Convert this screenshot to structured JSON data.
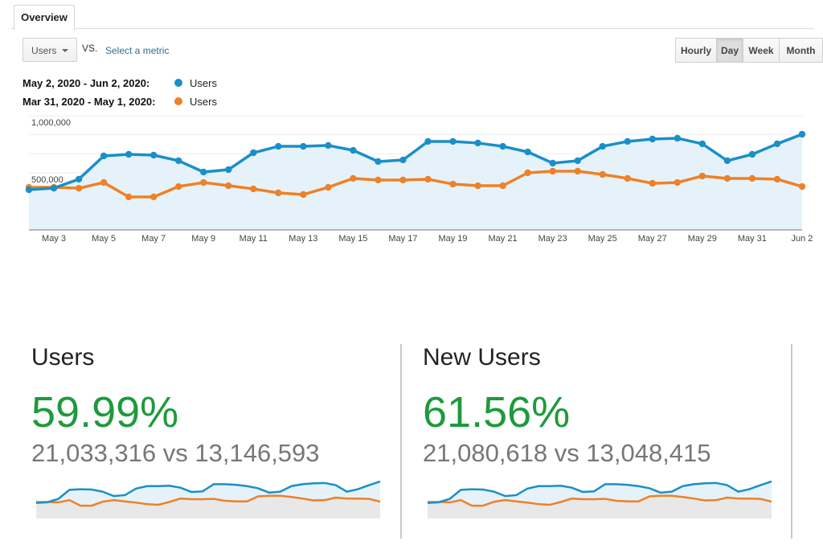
{
  "tabs": {
    "overview": "Overview"
  },
  "controls": {
    "metric_selected": "Users",
    "vs_label": "VS.",
    "select_metric_link": "Select a metric",
    "periods": [
      "Hourly",
      "Day",
      "Week",
      "Month"
    ],
    "active_period": "Day"
  },
  "legend": [
    {
      "range": "May 2, 2020 - Jun 2, 2020:",
      "label": "Users",
      "color": "#1a8fc9"
    },
    {
      "range": "Mar 31, 2020 - May 1, 2020:",
      "label": "Users",
      "color": "#ee8127"
    }
  ],
  "chart_data": {
    "type": "line",
    "ylim": [
      0,
      1000000
    ],
    "y_ticks": [
      "1,000,000",
      "500,000"
    ],
    "x_tick_labels": [
      "May 3",
      "May 5",
      "May 7",
      "May 9",
      "May 11",
      "May 13",
      "May 15",
      "May 17",
      "May 19",
      "May 21",
      "May 23",
      "May 25",
      "May 27",
      "May 29",
      "May 31",
      "Jun 2"
    ],
    "x": [
      "May 2",
      "May 3",
      "May 4",
      "May 5",
      "May 6",
      "May 7",
      "May 8",
      "May 9",
      "May 10",
      "May 11",
      "May 12",
      "May 13",
      "May 14",
      "May 15",
      "May 16",
      "May 17",
      "May 18",
      "May 19",
      "May 20",
      "May 21",
      "May 22",
      "May 23",
      "May 24",
      "May 25",
      "May 26",
      "May 27",
      "May 28",
      "May 29",
      "May 30",
      "May 31",
      "Jun 1",
      "Jun 2"
    ],
    "grid": true,
    "series": [
      {
        "name": "Users",
        "color": "#1a8fc9",
        "values": [
          352000,
          366000,
          444000,
          648000,
          662000,
          655000,
          606000,
          507000,
          528000,
          676000,
          732000,
          732000,
          740000,
          697000,
          599000,
          613000,
          775000,
          775000,
          761000,
          732000,
          683000,
          585000,
          606000,
          732000,
          775000,
          796000,
          803000,
          754000,
          606000,
          662000,
          754000,
          838000
        ]
      },
      {
        "name": "Users",
        "color": "#ee8127",
        "values": [
          373000,
          373000,
          365000,
          415000,
          289000,
          289000,
          380000,
          415000,
          387000,
          359000,
          324000,
          310000,
          373000,
          451000,
          437000,
          437000,
          444000,
          401000,
          387000,
          387000,
          500000,
          514000,
          514000,
          486000,
          451000,
          408000,
          415000,
          472000,
          451000,
          451000,
          444000,
          380000
        ]
      }
    ]
  },
  "cards": [
    {
      "title": "Users",
      "change": "59.99%",
      "comparison": "21,033,316 vs 13,146,593"
    },
    {
      "title": "New Users",
      "change": "61.56%",
      "comparison": "21,080,618 vs 13,048,415"
    }
  ]
}
